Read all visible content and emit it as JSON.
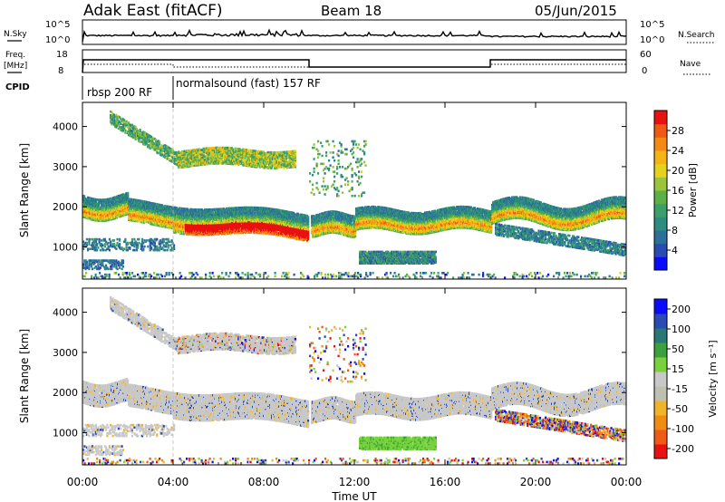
{
  "header": {
    "station": "Adak East (fitACF)",
    "beam": "Beam 18",
    "date": "05/Jun/2015"
  },
  "panels": {
    "nsky": {
      "label": "N.Sky",
      "ticks": [
        "10^5",
        "10^0"
      ],
      "right_label": "N.Search",
      "right_ticks": [
        "10^5",
        "10^0"
      ]
    },
    "freq": {
      "label_1": "Freq.",
      "label_2": "[MHz]",
      "ticks": [
        "18",
        "8"
      ],
      "right_label": "Nave",
      "right_ticks": [
        "60",
        "0"
      ]
    },
    "cpid": {
      "label": "CPID",
      "segments": [
        "rbsp 200 RF",
        "normalsound (fast) 157 RF"
      ]
    }
  },
  "chart_data": [
    {
      "type": "heatmap",
      "ylabel": "Slant Range [km]",
      "yticks": [
        "4000",
        "3000",
        "2000",
        "1000"
      ],
      "ylim": [
        200,
        4600
      ],
      "xlim": [
        0,
        24
      ],
      "colorbar": {
        "label": "Power [dB]",
        "ticks": [
          "28",
          "24",
          "20",
          "16",
          "12",
          "8",
          "4"
        ],
        "range": [
          0,
          32
        ]
      }
    },
    {
      "type": "heatmap",
      "ylabel": "Slant Range [km]",
      "yticks": [
        "4000",
        "3000",
        "2000",
        "1000"
      ],
      "ylim": [
        200,
        4600
      ],
      "xlim": [
        0,
        24
      ],
      "colorbar": {
        "label": "Velocity [m s⁻¹]",
        "ticks": [
          "200",
          "100",
          "50",
          "15",
          "-15",
          "-50",
          "-100",
          "-200"
        ]
      }
    }
  ],
  "xaxis": {
    "ticks": [
      "00:00",
      "04:00",
      "08:00",
      "12:00",
      "16:00",
      "20:00",
      "00:00"
    ],
    "label": "Time UT"
  }
}
